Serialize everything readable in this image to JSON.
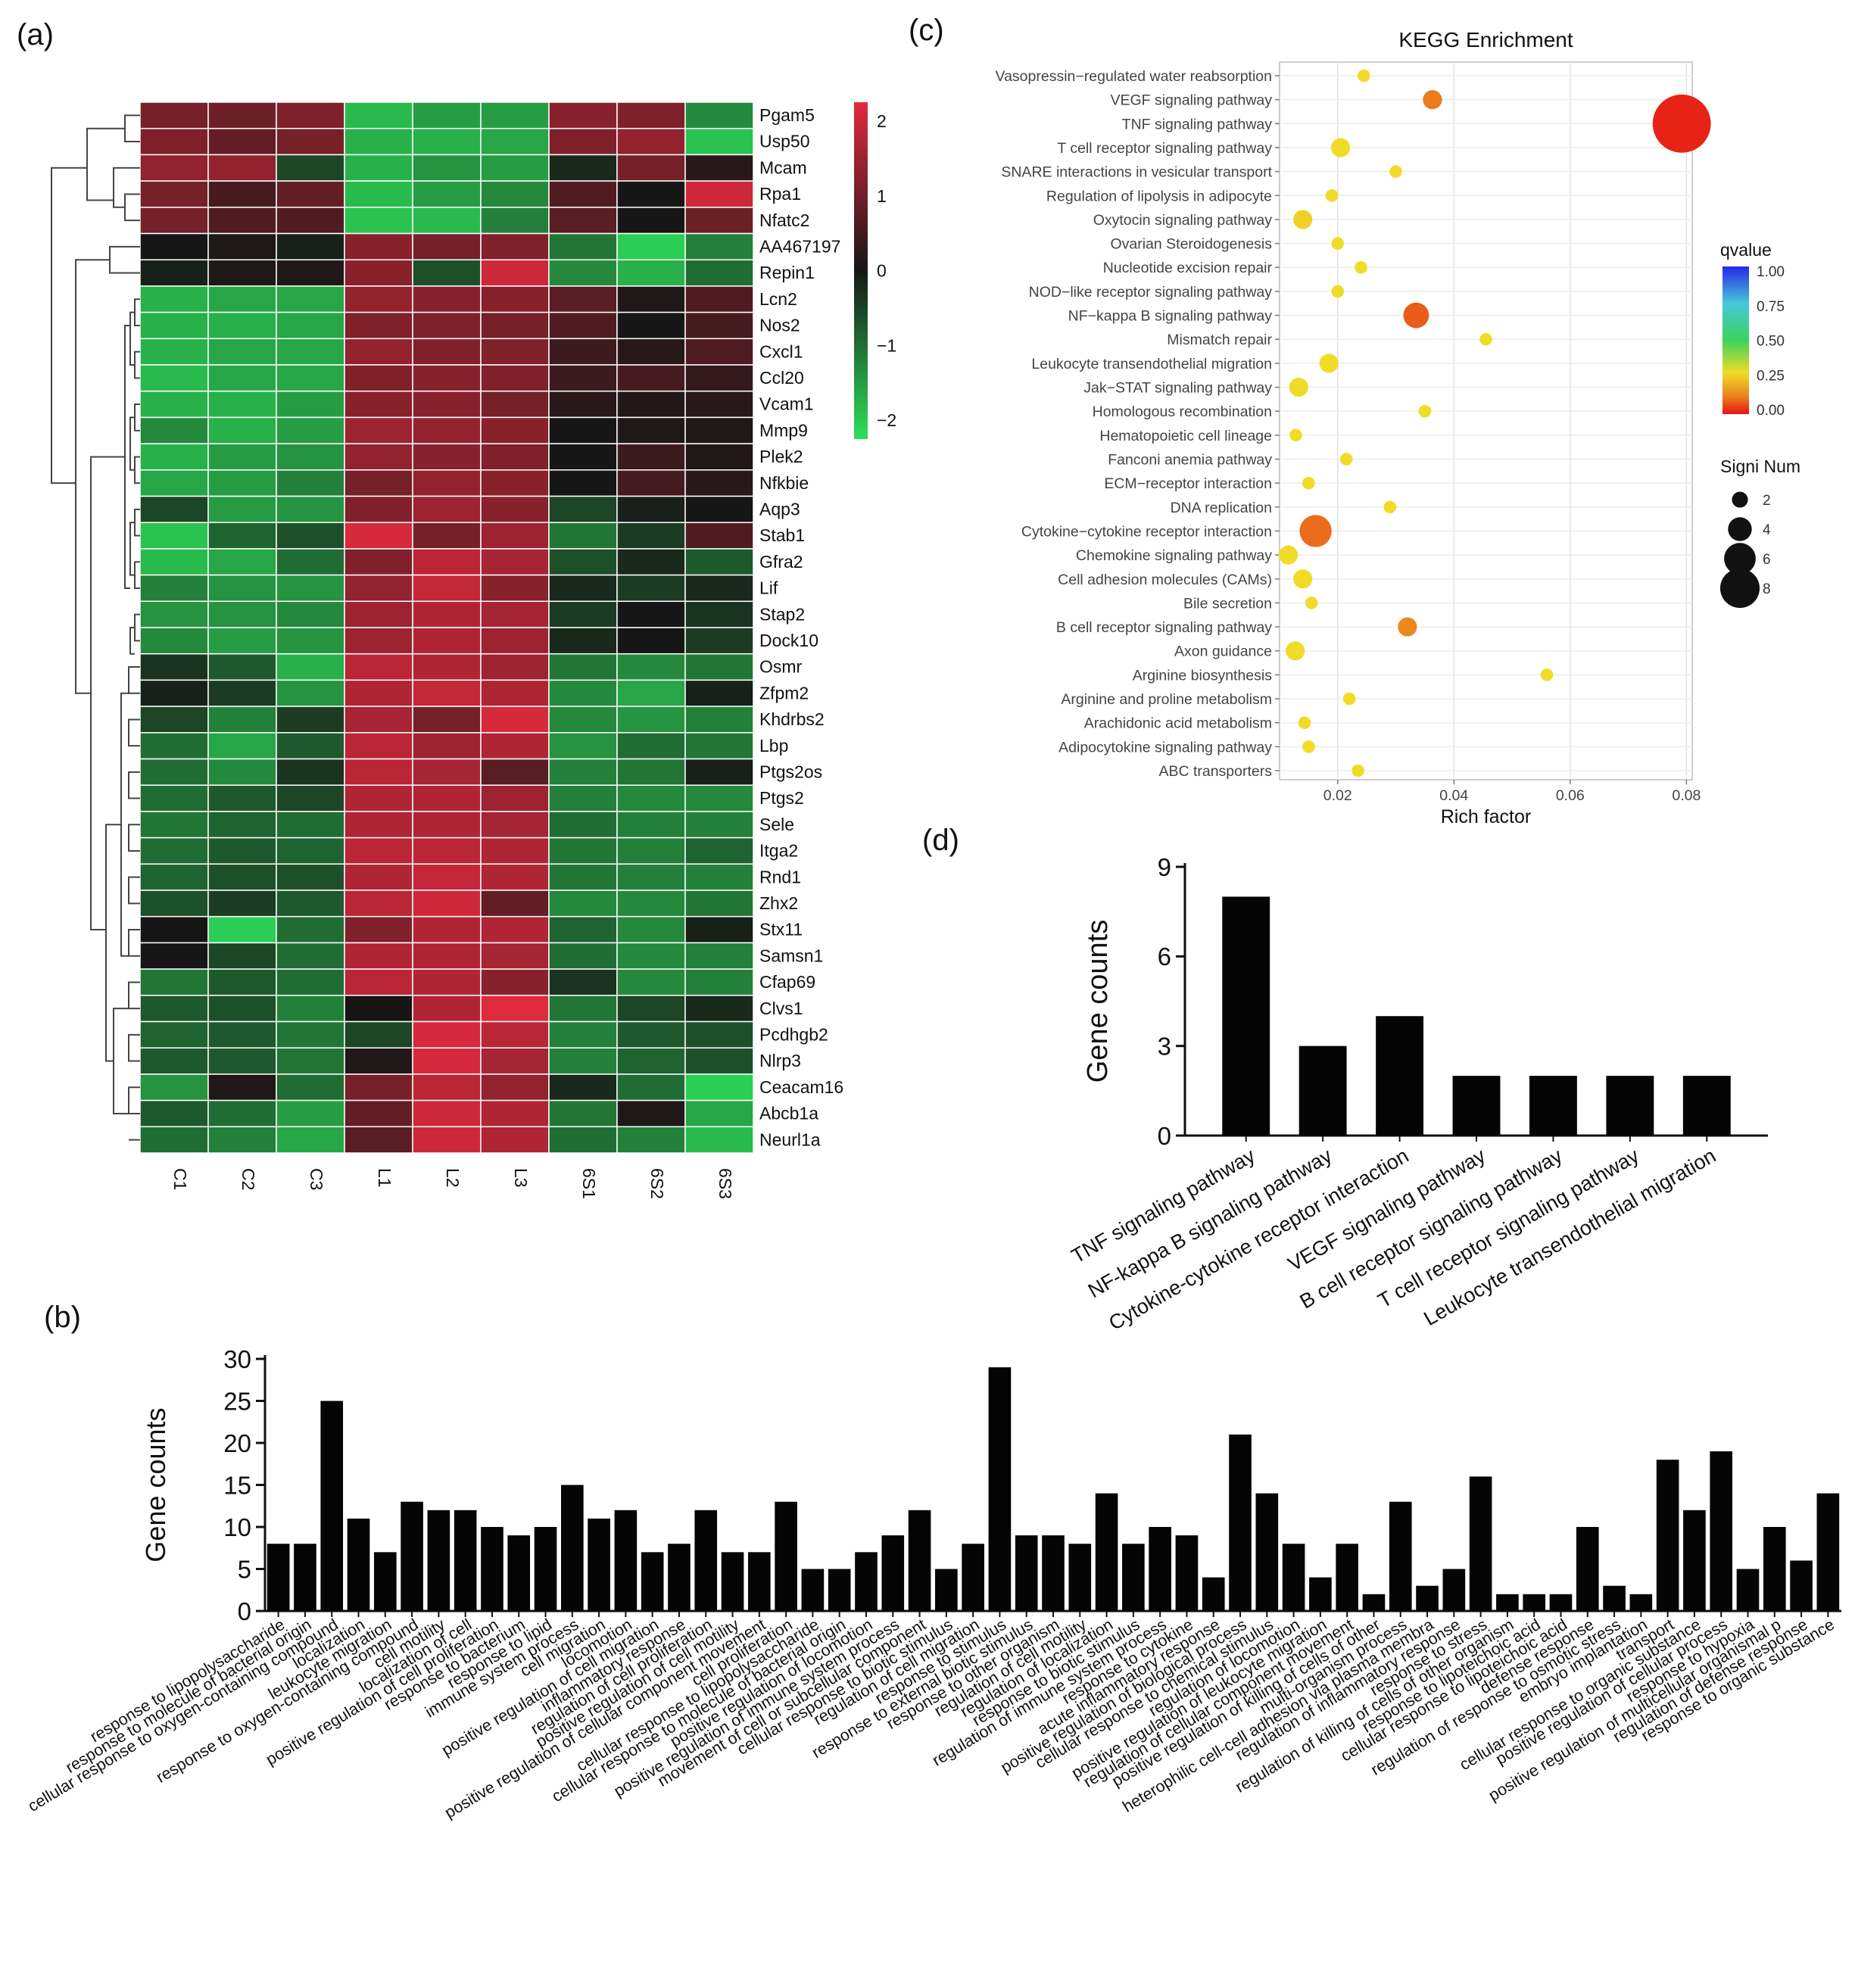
{
  "panels": {
    "a": "(a)",
    "b": "(b)",
    "c": "(c)",
    "d": "(d)"
  },
  "chart_data": [
    {
      "id": "a",
      "type": "heatmap",
      "columns": [
        "C1",
        "C2",
        "C3",
        "L1",
        "L2",
        "L3",
        "6S1",
        "6S2",
        "6S3"
      ],
      "rows": [
        "Pgam5",
        "Usp50",
        "Mcam",
        "Rpa1",
        "Nfatc2",
        "AA467197",
        "Repin1",
        "Lcn2",
        "Nos2",
        "Cxcl1",
        "Ccl20",
        "Vcam1",
        "Mmp9",
        "Plek2",
        "Nfkbie",
        "Aqp3",
        "Stab1",
        "Gfra2",
        "Lif",
        "Stap2",
        "Dock10",
        "Osmr",
        "Zfpm2",
        "Khdrbs2",
        "Lbp",
        "Ptgs2os",
        "Ptgs2",
        "Sele",
        "Itga2",
        "Rnd1",
        "Zhx2",
        "Stx11",
        "Samsn1",
        "Cfap69",
        "Clvs1",
        "Pcdhgb2",
        "Nlrp3",
        "Ceacam16",
        "Abcb1a",
        "Neurl1a"
      ],
      "values": [
        [
          1.0,
          0.9,
          1.1,
          -1.7,
          -1.4,
          -1.4,
          1.2,
          1.1,
          -1.2
        ],
        [
          1.1,
          0.8,
          1.0,
          -1.6,
          -1.6,
          -1.5,
          1.1,
          1.3,
          -1.8
        ],
        [
          1.3,
          1.3,
          -0.5,
          -1.6,
          -1.3,
          -1.4,
          -0.2,
          1.0,
          0.2
        ],
        [
          1.0,
          0.5,
          0.8,
          -1.7,
          -1.4,
          -1.2,
          0.6,
          0.0,
          1.9
        ],
        [
          1.0,
          0.6,
          0.6,
          -1.8,
          -1.7,
          -1.1,
          0.7,
          0.0,
          0.9
        ],
        [
          0.0,
          0.1,
          -0.1,
          1.2,
          1.0,
          1.1,
          -1.0,
          -1.9,
          -1.1
        ],
        [
          -0.1,
          0.1,
          0.1,
          1.2,
          -0.6,
          1.9,
          -1.2,
          -1.6,
          -0.9
        ],
        [
          -1.6,
          -1.5,
          -1.5,
          1.3,
          1.2,
          1.2,
          0.7,
          0.1,
          0.6
        ],
        [
          -1.6,
          -1.6,
          -1.5,
          1.1,
          1.1,
          1.0,
          0.6,
          0.0,
          0.5
        ],
        [
          -1.6,
          -1.5,
          -1.5,
          1.3,
          1.1,
          1.1,
          0.4,
          0.2,
          0.6
        ],
        [
          -1.7,
          -1.5,
          -1.5,
          1.1,
          1.2,
          1.1,
          0.4,
          0.5,
          0.3
        ],
        [
          -1.6,
          -1.6,
          -1.4,
          1.2,
          1.2,
          1.0,
          0.2,
          0.1,
          0.2
        ],
        [
          -1.2,
          -1.6,
          -1.4,
          1.4,
          1.3,
          1.2,
          0.0,
          0.1,
          0.1
        ],
        [
          -1.6,
          -1.4,
          -1.3,
          1.3,
          1.2,
          1.1,
          0.0,
          0.4,
          0.1
        ],
        [
          -1.5,
          -1.4,
          -1.1,
          1.0,
          1.3,
          1.2,
          0.0,
          0.5,
          0.2
        ],
        [
          -0.5,
          -1.4,
          -1.3,
          1.1,
          1.4,
          1.2,
          -0.5,
          -0.1,
          0.0
        ],
        [
          -1.8,
          -0.8,
          -0.6,
          2.0,
          1.0,
          1.4,
          -1.0,
          -0.4,
          0.6
        ],
        [
          -1.7,
          -1.5,
          -0.9,
          1.1,
          1.7,
          1.5,
          -0.6,
          -0.2,
          -0.7
        ],
        [
          -1.1,
          -1.3,
          -1.3,
          1.3,
          1.8,
          1.2,
          -0.2,
          -0.4,
          -0.2
        ],
        [
          -1.3,
          -1.3,
          -1.2,
          1.4,
          1.6,
          1.5,
          -0.4,
          0.0,
          -0.3
        ],
        [
          -1.2,
          -1.4,
          -1.3,
          1.4,
          1.6,
          1.4,
          -0.2,
          0.0,
          -0.4
        ],
        [
          -0.3,
          -0.7,
          -1.6,
          1.7,
          1.6,
          1.4,
          -1.0,
          -1.2,
          -1.0
        ],
        [
          -0.1,
          -0.4,
          -1.3,
          1.6,
          1.8,
          1.6,
          -1.2,
          -1.5,
          -0.1
        ],
        [
          -0.5,
          -1.1,
          -0.4,
          1.5,
          1.0,
          2.0,
          -1.2,
          -1.3,
          -1.1
        ],
        [
          -0.9,
          -1.5,
          -0.7,
          1.7,
          1.4,
          1.6,
          -1.3,
          -0.9,
          -1.0
        ],
        [
          -0.9,
          -1.2,
          -0.3,
          1.7,
          1.5,
          0.7,
          -1.1,
          -1.0,
          -0.1
        ],
        [
          -0.9,
          -0.7,
          -0.5,
          1.6,
          1.6,
          1.4,
          -1.1,
          -1.2,
          -1.2
        ],
        [
          -1.0,
          -0.8,
          -0.9,
          1.6,
          1.6,
          1.5,
          -0.9,
          -1.1,
          -1.1
        ],
        [
          -0.9,
          -0.7,
          -0.8,
          1.7,
          1.7,
          1.6,
          -1.0,
          -1.1,
          -0.8
        ],
        [
          -0.8,
          -0.6,
          -0.6,
          1.6,
          1.8,
          1.6,
          -1.0,
          -1.1,
          -1.1
        ],
        [
          -0.6,
          -0.4,
          -0.7,
          1.7,
          1.9,
          0.8,
          -1.2,
          -1.2,
          -1.0
        ],
        [
          0.0,
          -1.9,
          -0.9,
          1.1,
          1.6,
          1.6,
          -0.8,
          -1.2,
          -0.1
        ],
        [
          0.0,
          -0.5,
          -0.9,
          1.6,
          1.6,
          1.5,
          -0.9,
          -1.2,
          -1.1
        ],
        [
          -1.0,
          -0.7,
          -0.9,
          1.7,
          1.6,
          1.2,
          -0.3,
          -1.2,
          -1.1
        ],
        [
          -0.7,
          -0.6,
          -1.1,
          0.0,
          1.6,
          2.2,
          -1.0,
          -0.5,
          -0.2
        ],
        [
          -0.8,
          -0.7,
          -1.0,
          -0.5,
          2.0,
          1.7,
          -1.1,
          -0.7,
          -0.6
        ],
        [
          -0.7,
          -0.7,
          -1.0,
          0.1,
          2.0,
          1.5,
          -1.1,
          -0.8,
          -0.6
        ],
        [
          -1.3,
          0.1,
          -0.9,
          1.0,
          1.7,
          1.3,
          -0.2,
          -0.9,
          -1.9
        ],
        [
          -0.7,
          -0.9,
          -1.4,
          0.8,
          1.9,
          1.6,
          -1.0,
          0.1,
          -1.5
        ],
        [
          -0.9,
          -1.1,
          -1.5,
          0.7,
          1.9,
          1.6,
          -0.9,
          -1.1,
          -1.7
        ]
      ],
      "legend_ticks": [
        "2",
        "1",
        "0",
        "−1",
        "−2"
      ],
      "color_low": "#2ee05a",
      "color_mid": "#161616",
      "color_high": "#e02a3e"
    },
    {
      "id": "b",
      "type": "bar",
      "ylabel": "Gene counts",
      "ylim": [
        0,
        30
      ],
      "yticks": [
        "0",
        "5",
        "10",
        "15",
        "20",
        "25",
        "30"
      ],
      "categories": [
        "response to lipopolysaccharide",
        "response to molecule of bacterial origin",
        "cellular response to oxygen-containing compound",
        "localization",
        "leukocyte migration",
        "response to oxygen-containing compound",
        "cell motility",
        "localization of cell",
        "positive regulation of cell proliferation",
        "response to bacterium",
        "response to lipid",
        "immune system process",
        "cell migration",
        "locomotion",
        "positive regulation of cell migration",
        "inflammatory response",
        "regulation of cell proliferation",
        "positive regulation of cell motility",
        "positive regulation of cellular component movement",
        "cell proliferation",
        "cellular response to lipopolysaccharide",
        "cellular response to molecule of bacterial origin",
        "positive regulation of locomotion",
        "positive regulation of immune system process",
        "movement of cell or subcellular component",
        "cellular response to biotic stimulus",
        "regulation of cell migration",
        "response to stimulus",
        "response to external biotic stimulus",
        "response to other organism",
        "regulation of cell motility",
        "regulation of localization",
        "response to biotic stimulus",
        "regulation of immune system process",
        "response to cytokine",
        "acute inflammatory response",
        "positive regulation of biological process",
        "cellular response to chemical stimulus",
        "regulation of locomotion",
        "positive regulation of leukocyte migration",
        "regulation of cellular component movement",
        "positive regulation of killing of cells of other",
        "multi-organism process",
        "heterophilic cell-cell adhesion via plasma membra",
        "regulation of inflammatory response",
        "response to stress",
        "regulation of killing of cells of other organism",
        "response to lipoteichoic acid",
        "cellular response to lipoteichoic acid",
        "defense response",
        "regulation of response to osmotic stress",
        "embryo implantation",
        "transport",
        "cellular response to organic substance",
        "positive regulation of cellular process",
        "response to hypoxia",
        "positive regulation of multicellular organismal p",
        "regulation of defense response",
        "response to organic substance"
      ],
      "values": [
        8,
        8,
        25,
        11,
        7,
        13,
        12,
        12,
        10,
        9,
        10,
        15,
        11,
        12,
        7,
        8,
        12,
        7,
        7,
        13,
        5,
        5,
        7,
        9,
        12,
        5,
        8,
        29,
        9,
        9,
        8,
        14,
        8,
        10,
        9,
        4,
        21,
        14,
        8,
        4,
        8,
        2,
        13,
        3,
        5,
        16,
        2,
        2,
        2,
        10,
        3,
        2,
        18,
        12,
        19,
        5,
        10,
        6,
        14
      ]
    },
    {
      "id": "c",
      "type": "scatter",
      "title": "KEGG Enrichment",
      "xlabel": "Rich factor",
      "xlim": [
        0.01,
        0.081
      ],
      "xticks": [
        0.02,
        0.04,
        0.06,
        0.08
      ],
      "xtick_labels": [
        "0.02",
        "0.04",
        "0.06",
        "0.08"
      ],
      "grid": true,
      "points": [
        {
          "term": "Vasopressin−regulated water reabsorption",
          "x": 0.0245,
          "n": 1,
          "q": 0.3
        },
        {
          "term": "VEGF signaling pathway",
          "x": 0.0363,
          "n": 2,
          "q": 0.14
        },
        {
          "term": "TNF signaling pathway",
          "x": 0.0792,
          "n": 8,
          "q": 0.02
        },
        {
          "term": "T cell receptor signaling pathway",
          "x": 0.0205,
          "n": 2,
          "q": 0.3
        },
        {
          "term": "SNARE interactions in vesicular transport",
          "x": 0.03,
          "n": 1,
          "q": 0.3
        },
        {
          "term": "Regulation of lipolysis in adipocyte",
          "x": 0.019,
          "n": 1,
          "q": 0.3
        },
        {
          "term": "Oxytocin signaling pathway",
          "x": 0.014,
          "n": 2,
          "q": 0.28
        },
        {
          "term": "Ovarian Steroidogenesis",
          "x": 0.02,
          "n": 1,
          "q": 0.3
        },
        {
          "term": "Nucleotide excision repair",
          "x": 0.024,
          "n": 1,
          "q": 0.3
        },
        {
          "term": "NOD−like receptor signaling pathway",
          "x": 0.02,
          "n": 1,
          "q": 0.3
        },
        {
          "term": "NF−kappa B signaling pathway",
          "x": 0.0335,
          "n": 3,
          "q": 0.1
        },
        {
          "term": "Mismatch repair",
          "x": 0.0455,
          "n": 1,
          "q": 0.3
        },
        {
          "term": "Leukocyte transendothelial migration",
          "x": 0.0185,
          "n": 2,
          "q": 0.3
        },
        {
          "term": "Jak−STAT signaling pathway",
          "x": 0.0133,
          "n": 2,
          "q": 0.3
        },
        {
          "term": "Homologous recombination",
          "x": 0.035,
          "n": 1,
          "q": 0.3
        },
        {
          "term": "Hematopoietic cell lineage",
          "x": 0.0128,
          "n": 1,
          "q": 0.3
        },
        {
          "term": "Fanconi anemia pathway",
          "x": 0.0215,
          "n": 1,
          "q": 0.3
        },
        {
          "term": "ECM−receptor interaction",
          "x": 0.015,
          "n": 1,
          "q": 0.3
        },
        {
          "term": "DNA replication",
          "x": 0.029,
          "n": 1,
          "q": 0.3
        },
        {
          "term": "Cytokine−cytokine receptor interaction",
          "x": 0.0162,
          "n": 4,
          "q": 0.12
        },
        {
          "term": "Chemokine signaling pathway",
          "x": 0.0115,
          "n": 2,
          "q": 0.3
        },
        {
          "term": "Cell adhesion molecules (CAMs)",
          "x": 0.014,
          "n": 2,
          "q": 0.3
        },
        {
          "term": "Bile secretion",
          "x": 0.0155,
          "n": 1,
          "q": 0.3
        },
        {
          "term": "B cell receptor signaling pathway",
          "x": 0.032,
          "n": 2,
          "q": 0.16
        },
        {
          "term": "Axon guidance",
          "x": 0.0127,
          "n": 2,
          "q": 0.3
        },
        {
          "term": "Arginine biosynthesis",
          "x": 0.056,
          "n": 1,
          "q": 0.3
        },
        {
          "term": "Arginine and proline metabolism",
          "x": 0.022,
          "n": 1,
          "q": 0.3
        },
        {
          "term": "Arachidonic acid metabolism",
          "x": 0.0143,
          "n": 1,
          "q": 0.3
        },
        {
          "term": "Adipocytokine signaling pathway",
          "x": 0.015,
          "n": 1,
          "q": 0.3
        },
        {
          "term": "ABC transporters",
          "x": 0.0235,
          "n": 1,
          "q": 0.3
        }
      ],
      "legend_q_title": "qvalue",
      "legend_q_ticks": [
        "1.00",
        "0.75",
        "0.50",
        "0.25",
        "0.00"
      ],
      "legend_n_title": "Signi Num",
      "legend_n_values": [
        2,
        4,
        6,
        8
      ]
    },
    {
      "id": "d",
      "type": "bar",
      "ylabel": "Gene counts",
      "ylim": [
        0,
        9
      ],
      "yticks": [
        "0",
        "3",
        "6",
        "9"
      ],
      "categories": [
        "TNF signaling pathway",
        "NF-kappa B signaling pathway",
        "Cytokine-cytokine receptor interaction",
        "VEGF signaling pathway",
        "B cell receptor signaling pathway",
        "T cell receptor signaling pathway",
        "Leukocyte transendothelial migration"
      ],
      "values": [
        8,
        3,
        4,
        2,
        2,
        2,
        2
      ]
    }
  ]
}
